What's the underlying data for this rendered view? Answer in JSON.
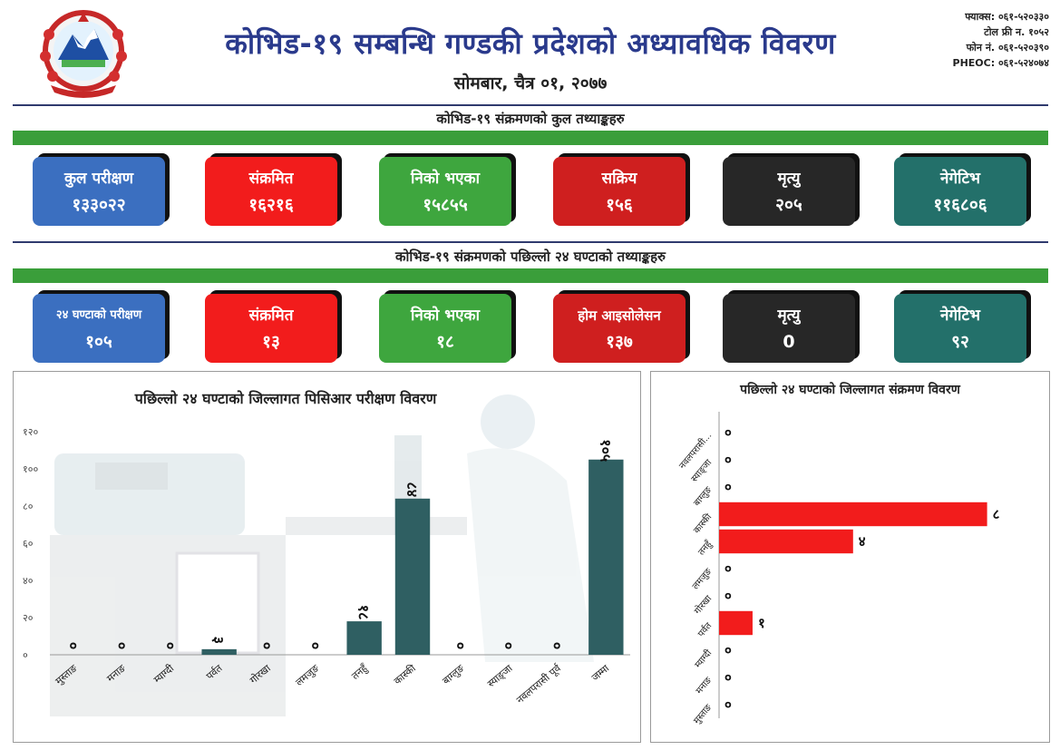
{
  "header": {
    "title": "कोभिड-१९ सम्बन्धि गण्डकी प्रदेशको अध्यावधिक विवरण",
    "date": "सोमबार, चैत्र ०१, २०७७",
    "contact": [
      "फ्याक्स: ०६१-५२०३३०",
      "टोल फ्री न. १०५२",
      "फोन नं. ०६१-५२०३९०",
      "PHEOC: ०६१-५२४०७४"
    ]
  },
  "total_section": {
    "title": "कोभिड-१९ संक्रमणको कुल तथ्याङ्कहरु",
    "cards": [
      {
        "label": "कुल परीक्षण",
        "value": "१३३०२२",
        "color": "#3b6fc0"
      },
      {
        "label": "संक्रमित",
        "value": "१६२१६",
        "color": "#f21c1c"
      },
      {
        "label": "निको भएका",
        "value": "१५८५५",
        "color": "#3ea63e"
      },
      {
        "label": "सक्रिय",
        "value": "१५६",
        "color": "#cf1f1f"
      },
      {
        "label": "मृत्यु",
        "value": "२०५",
        "color": "#272727"
      },
      {
        "label": "नेगेटिभ",
        "value": "११६८०६",
        "color": "#23706a"
      }
    ]
  },
  "last24_section": {
    "title": "कोभिड-१९ संक्रमणको पछिल्लो २४ घण्टाको तथ्याङ्कहरु",
    "cards": [
      {
        "label": "२४ घण्टाको परीक्षण",
        "value": "१०५",
        "color": "#3b6fc0"
      },
      {
        "label": "संक्रमित",
        "value": "१३",
        "color": "#f21c1c"
      },
      {
        "label": "निको भएका",
        "value": "१८",
        "color": "#3ea63e"
      },
      {
        "label": "होम आइसोलेसन",
        "value": "१३७",
        "color": "#cf1f1f"
      },
      {
        "label": "मृत्यु",
        "value": "0",
        "color": "#272727"
      },
      {
        "label": "नेगेटिभ",
        "value": "९२",
        "color": "#23706a"
      }
    ]
  },
  "chart_data": [
    {
      "type": "bar",
      "title": "पछिल्लो २४ घण्टाको जिल्लागत पिसिआर परीक्षण विवरण",
      "categories": [
        "मुस्ताङ",
        "मनाङ",
        "म्याग्दी",
        "पर्वत",
        "गोरखा",
        "लमजुङ",
        "तनहुँ",
        "कास्की",
        "बाग्लुङ",
        "स्याङ्जा",
        "नवलपरासी पूर्व",
        "जम्मा"
      ],
      "values": [
        0,
        0,
        0,
        3,
        0,
        0,
        18,
        84,
        0,
        0,
        0,
        105
      ],
      "data_labels": [
        "०",
        "०",
        "०",
        "३",
        "०",
        "०",
        "१८",
        "८४",
        "०",
        "०",
        "०",
        "१०५"
      ],
      "yticks": [
        "०",
        "२०",
        "४०",
        "६०",
        "८०",
        "१००",
        "१२०"
      ],
      "ylim": [
        0,
        120
      ],
      "bar_color": "#2f5f62",
      "grid": false
    },
    {
      "type": "bar",
      "orientation": "horizontal",
      "title": "पछिल्लो २४ घण्टाको जिल्लागत संक्रमण विवरण",
      "categories": [
        "नवलपरासी...",
        "स्याङ्जा",
        "बाग्लुङ",
        "कास्की",
        "तनहुँ",
        "लमजुङ",
        "गोरखा",
        "पर्वत",
        "म्याग्दी",
        "मनाङ",
        "मुस्ताङ"
      ],
      "values": [
        0,
        0,
        0,
        8,
        4,
        0,
        0,
        1,
        0,
        0,
        0
      ],
      "data_labels": [
        "०",
        "०",
        "०",
        "८",
        "४",
        "०",
        "०",
        "१",
        "०",
        "०",
        "०"
      ],
      "xlim": [
        0,
        8.2
      ],
      "bar_color": "#f21c1c",
      "grid": false
    }
  ]
}
